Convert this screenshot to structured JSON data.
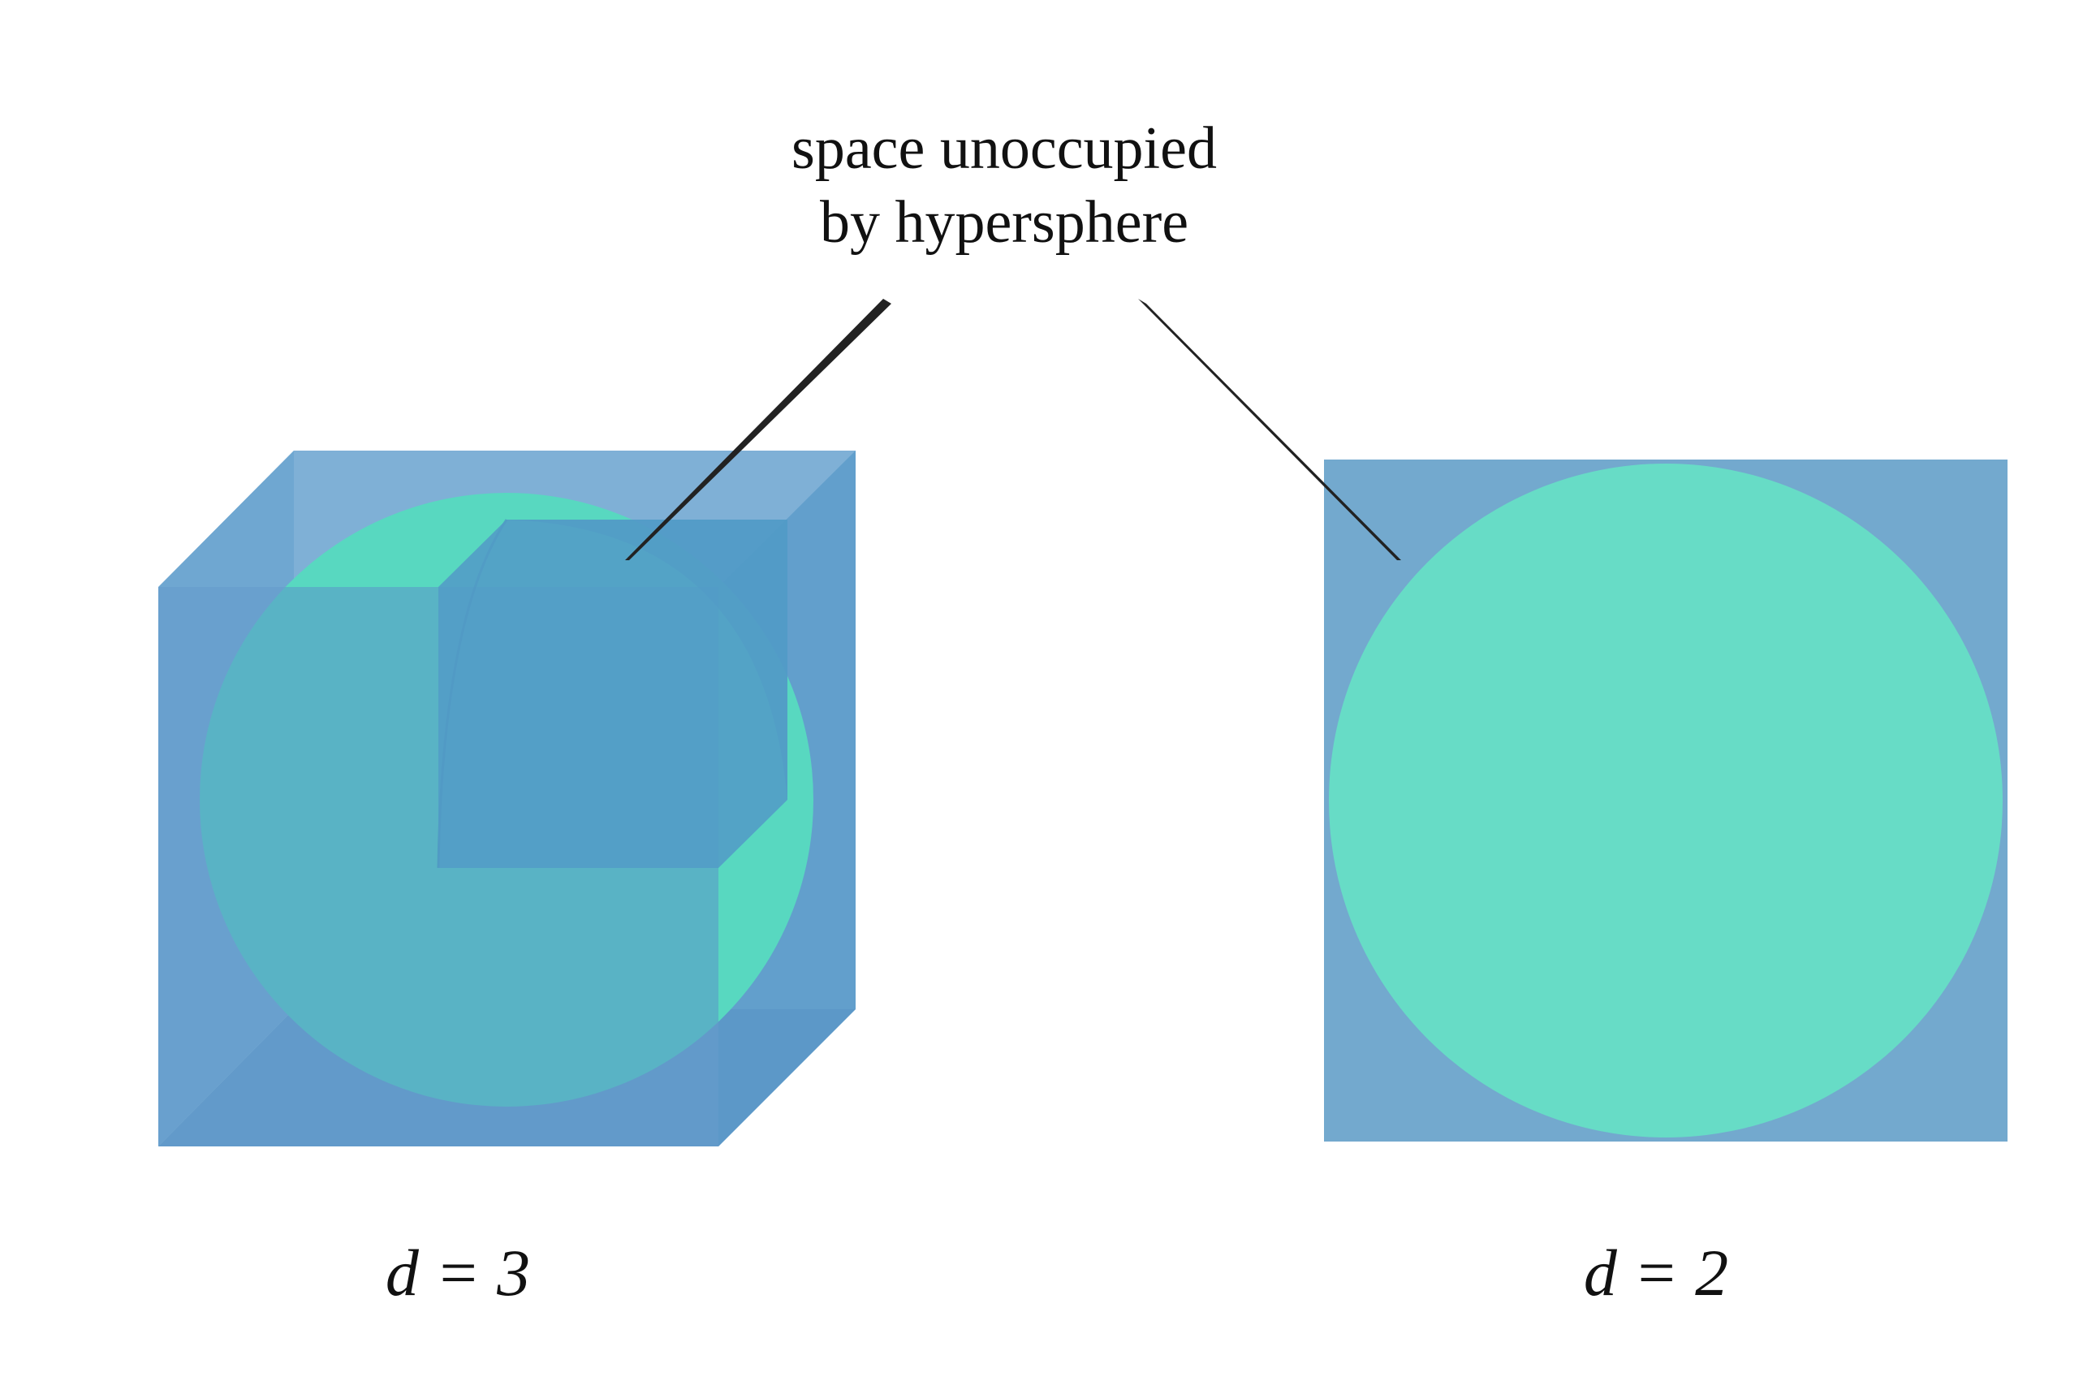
{
  "annotation": {
    "line1": "space unoccupied",
    "line2": "by hypersphere"
  },
  "labels": {
    "d3": "d = 3",
    "d2": "d = 2"
  },
  "colors": {
    "cube_blue": "#5f9ccb",
    "cube_front": "#6aa3cd",
    "sphere_teal": "#58d8c0",
    "square_blue": "#73a9ce",
    "circle_teal": "#67dcc6",
    "pointer_line": "#222222",
    "background": "#ffffff"
  }
}
